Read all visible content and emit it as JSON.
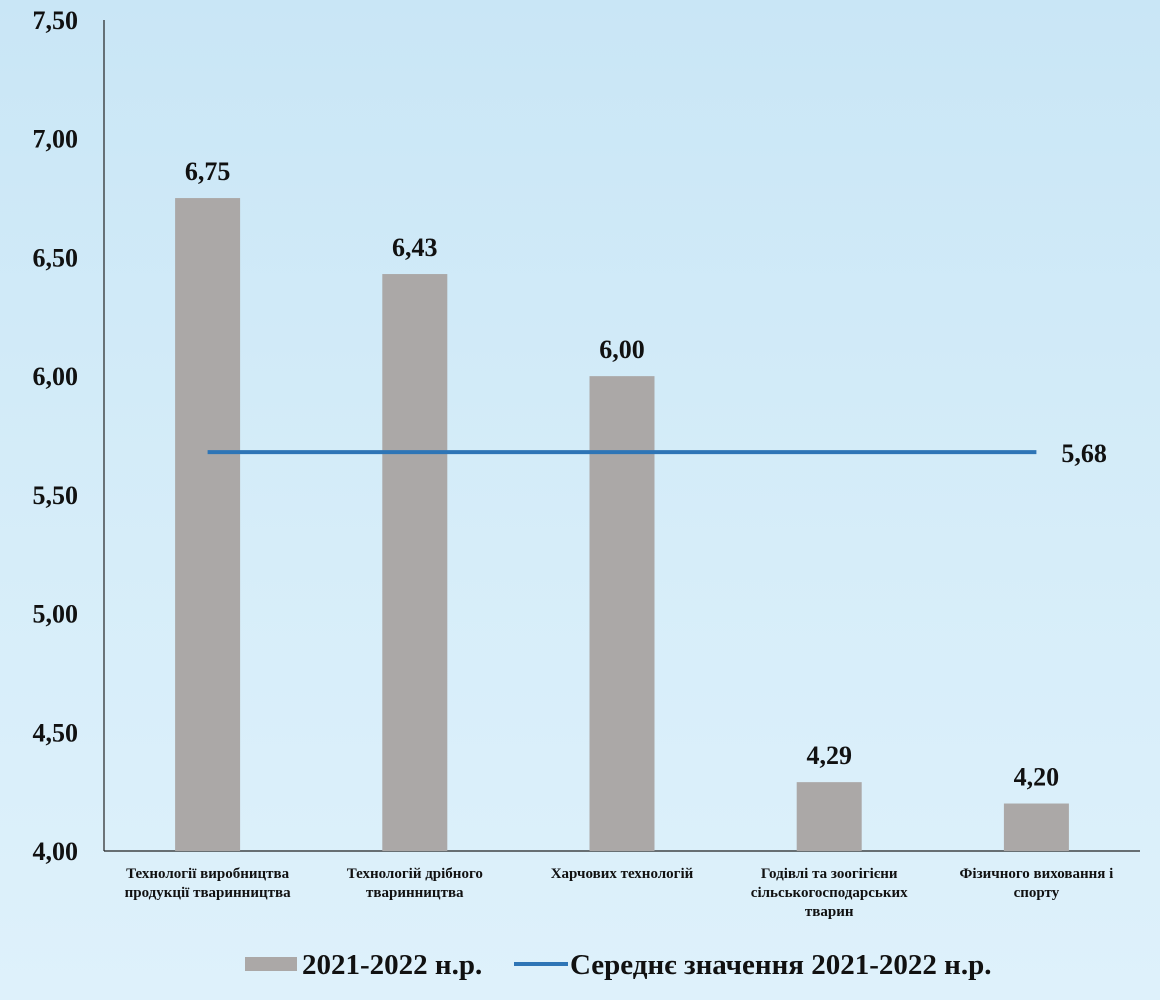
{
  "chart_data": {
    "type": "bar",
    "categories": [
      [
        "Технології виробництва",
        "продукції тваринництва"
      ],
      [
        "Технологій дрібного",
        "тваринництва"
      ],
      [
        "Харчових технологій"
      ],
      [
        "Годівлі та зоогігієни",
        "сільськогосподарських",
        "тварин"
      ],
      [
        "Фізичного виховання і",
        "спорту"
      ]
    ],
    "series": [
      {
        "name": "2021-2022 н.р.",
        "type": "bar",
        "values": [
          6.75,
          6.43,
          6.0,
          4.29,
          4.2
        ],
        "value_labels": [
          "6,75",
          "6,43",
          "6,00",
          "4,29",
          "4,20"
        ],
        "color": "#aba8a7"
      },
      {
        "name": "Середнє значення 2021-2022 н.р.",
        "type": "line",
        "value": 5.68,
        "value_label": "5,68",
        "color": "#2e75b6"
      }
    ],
    "ylim": [
      4.0,
      7.5
    ],
    "yticks": [
      4.0,
      4.5,
      5.0,
      5.5,
      6.0,
      6.5,
      7.0,
      7.5
    ],
    "ytick_labels": [
      "4,00",
      "4,50",
      "5,00",
      "5,50",
      "6,00",
      "6,50",
      "7,00",
      "7,50"
    ],
    "grid": false,
    "legend": "bottom"
  }
}
